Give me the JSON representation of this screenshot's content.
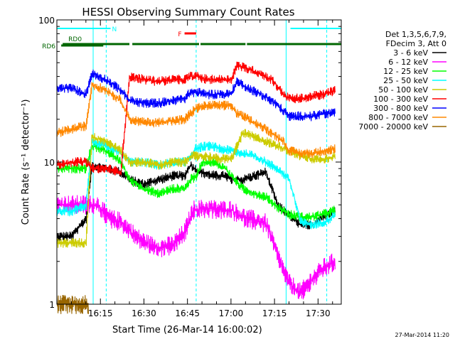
{
  "chart_data": {
    "type": "line",
    "title": "HESSI Observing Summary Count Rates",
    "xlabel": "Start Time (26-Mar-14 16:00:02)",
    "ylabel": "Count Rate (s⁻¹ detector⁻¹)",
    "yscale": "log",
    "ylim": [
      1,
      100
    ],
    "xlim_minutes": [
      0,
      98
    ],
    "x_units": "minutes after 16:00:02",
    "x_ticks": [
      {
        "m": 15,
        "label": "16:15"
      },
      {
        "m": 30,
        "label": "16:30"
      },
      {
        "m": 45,
        "label": "16:45"
      },
      {
        "m": 60,
        "label": "17:00"
      },
      {
        "m": 75,
        "label": "17:15"
      },
      {
        "m": 90,
        "label": "17:30"
      }
    ],
    "y_ticks": [
      {
        "v": 1,
        "label": "1"
      },
      {
        "v": 10,
        "label": "10"
      },
      {
        "v": 100,
        "label": "100"
      }
    ],
    "legend": {
      "placement": "right",
      "header": [
        "Det 1,3,5,6,7,9,",
        "FDecim 3, Att 0"
      ]
    },
    "series": [
      {
        "name": "3 - 6 keV",
        "color": "#000000",
        "points": [
          [
            0,
            3
          ],
          [
            5,
            3
          ],
          [
            10,
            4
          ],
          [
            12,
            9.5
          ],
          [
            17,
            9
          ],
          [
            22,
            8.5
          ],
          [
            25,
            7.5
          ],
          [
            30,
            7
          ],
          [
            35,
            7.5
          ],
          [
            40,
            8
          ],
          [
            44,
            8
          ],
          [
            46,
            9.5
          ],
          [
            49,
            8.5
          ],
          [
            52,
            8.2
          ],
          [
            55,
            8
          ],
          [
            58,
            8
          ],
          [
            60,
            7.5
          ],
          [
            64,
            7.5
          ],
          [
            68,
            8
          ],
          [
            72,
            8.5
          ],
          [
            76,
            5
          ],
          [
            80,
            4.2
          ],
          [
            84,
            3.6
          ],
          [
            88,
            3.6
          ],
          [
            92,
            4.2
          ],
          [
            96,
            4.5
          ]
        ]
      },
      {
        "name": "6 - 12 keV",
        "color": "#ff00ff",
        "points": [
          [
            0,
            5
          ],
          [
            5,
            5
          ],
          [
            10,
            5
          ],
          [
            12,
            5
          ],
          [
            14,
            5
          ],
          [
            18,
            4
          ],
          [
            22,
            3.8
          ],
          [
            25,
            3.3
          ],
          [
            28,
            2.9
          ],
          [
            32,
            2.6
          ],
          [
            36,
            2.5
          ],
          [
            40,
            2.6
          ],
          [
            44,
            3.2
          ],
          [
            47,
            4.6
          ],
          [
            52,
            4.7
          ],
          [
            56,
            4.6
          ],
          [
            60,
            4.6
          ],
          [
            64,
            4.1
          ],
          [
            68,
            3.9
          ],
          [
            72,
            3.7
          ],
          [
            76,
            2.2
          ],
          [
            80,
            1.4
          ],
          [
            84,
            1.2
          ],
          [
            88,
            1.5
          ],
          [
            92,
            1.8
          ],
          [
            96,
            2.0
          ]
        ]
      },
      {
        "name": "12 - 25 keV",
        "color": "#00ff00",
        "points": [
          [
            0,
            9
          ],
          [
            5,
            9
          ],
          [
            10,
            9
          ],
          [
            12,
            13
          ],
          [
            17,
            12
          ],
          [
            22,
            10
          ],
          [
            25,
            7.5
          ],
          [
            30,
            6.5
          ],
          [
            35,
            6
          ],
          [
            40,
            6.5
          ],
          [
            44,
            6.5
          ],
          [
            46,
            7.5
          ],
          [
            48,
            8
          ],
          [
            50,
            10
          ],
          [
            54,
            10
          ],
          [
            58,
            9
          ],
          [
            60,
            8
          ],
          [
            64,
            6.5
          ],
          [
            68,
            6
          ],
          [
            72,
            5.7
          ],
          [
            76,
            4.8
          ],
          [
            80,
            4.3
          ],
          [
            84,
            4.1
          ],
          [
            88,
            4.1
          ],
          [
            92,
            4.3
          ],
          [
            96,
            4.6
          ]
        ]
      },
      {
        "name": "25 - 50 keV",
        "color": "#00ffff",
        "points": [
          [
            0,
            4.5
          ],
          [
            5,
            4.5
          ],
          [
            10,
            5
          ],
          [
            12,
            14
          ],
          [
            17,
            13
          ],
          [
            22,
            11.5
          ],
          [
            25,
            10
          ],
          [
            30,
            10
          ],
          [
            35,
            9.5
          ],
          [
            40,
            10
          ],
          [
            44,
            10
          ],
          [
            46,
            11
          ],
          [
            48,
            12.5
          ],
          [
            52,
            13
          ],
          [
            56,
            12.5
          ],
          [
            60,
            12
          ],
          [
            64,
            11.5
          ],
          [
            68,
            11
          ],
          [
            72,
            10
          ],
          [
            76,
            9
          ],
          [
            80,
            7.5
          ],
          [
            84,
            3.8
          ],
          [
            88,
            3.6
          ],
          [
            92,
            3.8
          ],
          [
            96,
            4.2
          ]
        ]
      },
      {
        "name": "50 - 100 keV",
        "color": "#cccc00",
        "points": [
          [
            0,
            2.7
          ],
          [
            5,
            2.7
          ],
          [
            10,
            2.7
          ],
          [
            12,
            15
          ],
          [
            17,
            14
          ],
          [
            22,
            12
          ],
          [
            25,
            10
          ],
          [
            30,
            10
          ],
          [
            35,
            9.5
          ],
          [
            40,
            10
          ],
          [
            44,
            10
          ],
          [
            46,
            11
          ],
          [
            48,
            11
          ],
          [
            52,
            11
          ],
          [
            56,
            10.5
          ],
          [
            60,
            10.5
          ],
          [
            64,
            16
          ],
          [
            68,
            15
          ],
          [
            72,
            14
          ],
          [
            76,
            13
          ],
          [
            80,
            12
          ],
          [
            84,
            11
          ],
          [
            88,
            10.5
          ],
          [
            92,
            10.5
          ],
          [
            96,
            11
          ]
        ]
      },
      {
        "name": "100 - 300 keV",
        "color": "#ff0000",
        "points": [
          [
            0,
            9.5
          ],
          [
            5,
            10
          ],
          [
            10,
            10
          ],
          [
            12,
            9
          ],
          [
            17,
            9
          ],
          [
            22,
            8.5
          ],
          [
            25,
            40
          ],
          [
            30,
            38
          ],
          [
            35,
            37
          ],
          [
            40,
            38
          ],
          [
            44,
            38
          ],
          [
            46,
            40
          ],
          [
            48,
            40
          ],
          [
            52,
            38
          ],
          [
            56,
            38
          ],
          [
            60,
            38
          ],
          [
            62,
            48
          ],
          [
            66,
            45
          ],
          [
            70,
            42
          ],
          [
            74,
            38
          ],
          [
            78,
            30
          ],
          [
            80,
            28
          ],
          [
            84,
            28
          ],
          [
            88,
            29
          ],
          [
            92,
            30
          ],
          [
            96,
            32
          ]
        ]
      },
      {
        "name": "300 - 800 keV",
        "color": "#0000ff",
        "points": [
          [
            0,
            33
          ],
          [
            5,
            33
          ],
          [
            10,
            30
          ],
          [
            12,
            42
          ],
          [
            17,
            38
          ],
          [
            22,
            32
          ],
          [
            25,
            27
          ],
          [
            30,
            26
          ],
          [
            35,
            26
          ],
          [
            40,
            27
          ],
          [
            44,
            28
          ],
          [
            46,
            31
          ],
          [
            48,
            31
          ],
          [
            52,
            30
          ],
          [
            56,
            30
          ],
          [
            60,
            30
          ],
          [
            62,
            37
          ],
          [
            66,
            33
          ],
          [
            70,
            30
          ],
          [
            74,
            27
          ],
          [
            78,
            23
          ],
          [
            80,
            21
          ],
          [
            84,
            21
          ],
          [
            88,
            21
          ],
          [
            92,
            22
          ],
          [
            96,
            22
          ]
        ]
      },
      {
        "name": "800 - 7000 keV",
        "color": "#ff8800",
        "points": [
          [
            0,
            16
          ],
          [
            5,
            17
          ],
          [
            10,
            18
          ],
          [
            12,
            35
          ],
          [
            17,
            32
          ],
          [
            22,
            27
          ],
          [
            25,
            20
          ],
          [
            30,
            19
          ],
          [
            35,
            19
          ],
          [
            40,
            19.5
          ],
          [
            44,
            20
          ],
          [
            46,
            22
          ],
          [
            48,
            24
          ],
          [
            52,
            25
          ],
          [
            56,
            25
          ],
          [
            60,
            25
          ],
          [
            62,
            22
          ],
          [
            66,
            20
          ],
          [
            70,
            18
          ],
          [
            74,
            16
          ],
          [
            78,
            14
          ],
          [
            80,
            12
          ],
          [
            84,
            11.5
          ],
          [
            88,
            11.5
          ],
          [
            92,
            12
          ],
          [
            96,
            12.5
          ]
        ]
      },
      {
        "name": "7000 - 20000 keV",
        "color": "#996600",
        "points": [
          [
            0,
            1
          ],
          [
            5,
            1
          ],
          [
            10,
            1
          ],
          [
            11,
            1
          ]
        ]
      }
    ],
    "flags": [
      {
        "label": "N",
        "color": "#00ffff",
        "segments": [
          [
            0,
            18.5
          ],
          [
            80.5,
            98
          ]
        ]
      },
      {
        "label": "RD0",
        "color": "#006600",
        "segments": [
          [
            2,
            25
          ],
          [
            26,
            49
          ],
          [
            49.5,
            65
          ],
          [
            65.5,
            98
          ]
        ]
      },
      {
        "label": "RD6",
        "color": "#006600",
        "segments": [
          [
            1.5,
            16
          ]
        ]
      },
      {
        "label": "F",
        "color": "#ff0000",
        "segments": [
          [
            44,
            48
          ]
        ]
      }
    ],
    "event_lines": [
      {
        "m": 17,
        "color": "#00ffff",
        "style": "dashed"
      },
      {
        "m": 93,
        "color": "#00ffff",
        "style": "dashed"
      },
      {
        "m": 48,
        "color": "#00ffff",
        "style": "dashed"
      },
      {
        "m": 12.5,
        "color": "#00ffff",
        "style": "solid"
      },
      {
        "m": 79,
        "color": "#00ffff",
        "style": "solid"
      }
    ]
  },
  "footer": {
    "timestamp": "27-Mar-2014 11:20"
  }
}
